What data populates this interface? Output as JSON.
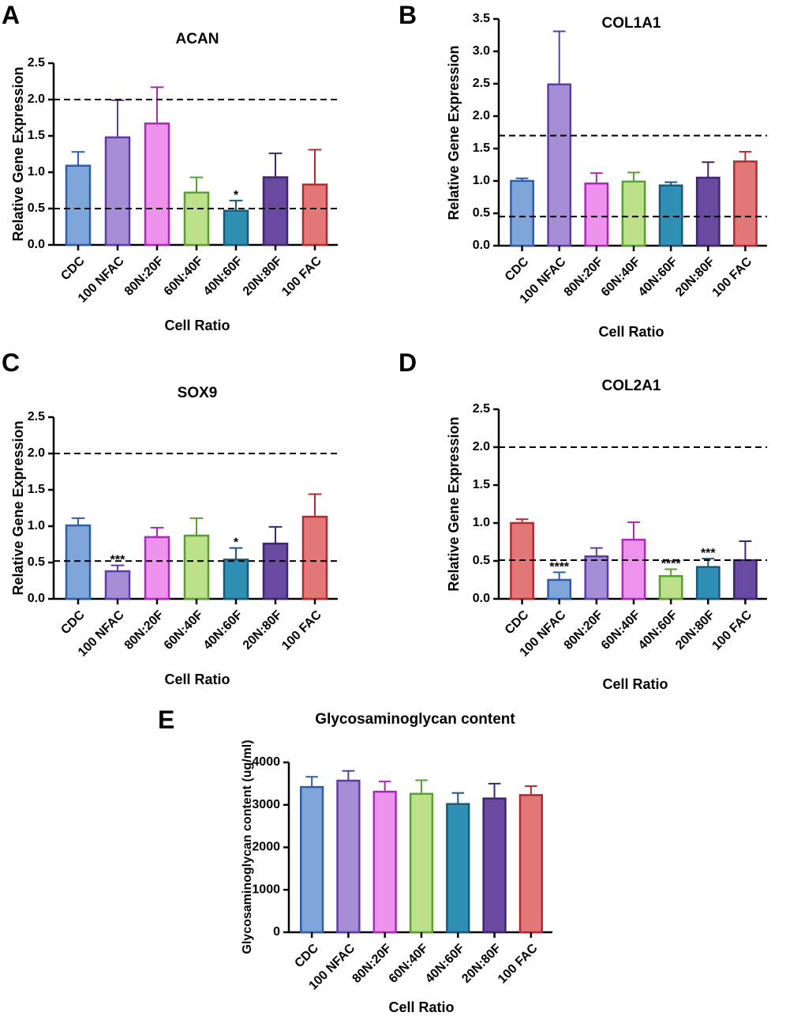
{
  "colors": {
    "blue": {
      "fill": "#7fa6da",
      "stroke": "#2f5da6"
    },
    "lavender": {
      "fill": "#a58ed6",
      "stroke": "#5e3ca6"
    },
    "pink": {
      "fill": "#ee92ee",
      "stroke": "#a82ab6"
    },
    "green": {
      "fill": "#bde08a",
      "stroke": "#58a030"
    },
    "teal": {
      "fill": "#2f8fb4",
      "stroke": "#1a5a78"
    },
    "purple": {
      "fill": "#6a4aa0",
      "stroke": "#3c2670"
    },
    "red": {
      "fill": "#e47878",
      "stroke": "#b22a32"
    }
  },
  "chart_data": [
    {
      "id": "A",
      "type": "bar",
      "panel_label": "A",
      "title": "ACAN",
      "xlabel": "Cell Ratio",
      "ylabel": "Relative Gene Expression",
      "ylim": [
        0,
        2.5
      ],
      "yticks": [
        "0.0",
        "0.5",
        "1.0",
        "1.5",
        "2.0",
        "2.5"
      ],
      "ytick_values": [
        0,
        0.5,
        1,
        1.5,
        2,
        2.5
      ],
      "categories": [
        "CDC",
        "100 NFAC",
        "80N:20F",
        "60N:40F",
        "40N:60F",
        "20N:80F",
        "100 FAC"
      ],
      "values": [
        1.09,
        1.48,
        1.67,
        0.72,
        0.47,
        0.93,
        0.83
      ],
      "errors": [
        0.19,
        0.51,
        0.5,
        0.21,
        0.14,
        0.33,
        0.48
      ],
      "significance": [
        "",
        "",
        "",
        "",
        "*",
        "",
        ""
      ],
      "reference_lines": [
        2.0,
        0.5
      ],
      "bar_colors": [
        "blue",
        "lavender",
        "pink",
        "green",
        "teal",
        "purple",
        "red"
      ]
    },
    {
      "id": "B",
      "type": "bar",
      "panel_label": "B",
      "title": "COL1A1",
      "xlabel": "Cell Ratio",
      "ylabel": "Relative Gene Expression",
      "ylim": [
        0,
        3.5
      ],
      "yticks": [
        "0.0",
        "0.5",
        "1.0",
        "1.5",
        "2.0",
        "2.5",
        "3.0",
        "3.5"
      ],
      "ytick_values": [
        0,
        0.5,
        1,
        1.5,
        2,
        2.5,
        3,
        3.5
      ],
      "categories": [
        "CDC",
        "100 NFAC",
        "80N:20F",
        "60N:40F",
        "40N:60F",
        "20N:80F",
        "100 FAC"
      ],
      "values": [
        1.0,
        2.49,
        0.96,
        0.99,
        0.93,
        1.05,
        1.3
      ],
      "errors": [
        0.04,
        0.82,
        0.16,
        0.14,
        0.05,
        0.24,
        0.15
      ],
      "significance": [
        "",
        "",
        "",
        "",
        "",
        "",
        ""
      ],
      "reference_lines": [
        1.7,
        0.45
      ],
      "bar_colors": [
        "blue",
        "lavender",
        "pink",
        "green",
        "teal",
        "purple",
        "red"
      ]
    },
    {
      "id": "C",
      "type": "bar",
      "panel_label": "C",
      "title": "SOX9",
      "xlabel": "Cell Ratio",
      "ylabel": "Relative Gene Expression",
      "ylim": [
        0,
        2.5
      ],
      "yticks": [
        "0.0",
        "0.5",
        "1.0",
        "1.5",
        "2.0",
        "2.5"
      ],
      "ytick_values": [
        0,
        0.5,
        1,
        1.5,
        2,
        2.5
      ],
      "categories": [
        "CDC",
        "100 NFAC",
        "80N:20F",
        "60N:40F",
        "40N:60F",
        "20N:80F",
        "100 FAC"
      ],
      "values": [
        1.01,
        0.38,
        0.85,
        0.87,
        0.54,
        0.76,
        1.13
      ],
      "errors": [
        0.1,
        0.08,
        0.13,
        0.24,
        0.16,
        0.23,
        0.31
      ],
      "significance": [
        "",
        "***",
        "",
        "",
        "*",
        "",
        ""
      ],
      "reference_lines": [
        2.0,
        0.52
      ],
      "bar_colors": [
        "blue",
        "lavender",
        "pink",
        "green",
        "teal",
        "purple",
        "red"
      ]
    },
    {
      "id": "D",
      "type": "bar",
      "panel_label": "D",
      "title": "COL2A1",
      "xlabel": "Cell Ratio",
      "ylabel": "Relative Gene Expression",
      "ylim": [
        0,
        2.5
      ],
      "yticks": [
        "0.0",
        "0.5",
        "1.0",
        "1.5",
        "2.0",
        "2.5"
      ],
      "ytick_values": [
        0,
        0.5,
        1,
        1.5,
        2,
        2.5
      ],
      "categories": [
        "CDC",
        "100 NFAC",
        "80N:20F",
        "60N:40F",
        "40N:60F",
        "20N:80F",
        "100 FAC"
      ],
      "values": [
        1.0,
        0.25,
        0.56,
        0.78,
        0.3,
        0.42,
        0.51
      ],
      "errors": [
        0.05,
        0.1,
        0.11,
        0.23,
        0.09,
        0.11,
        0.25
      ],
      "significance": [
        "",
        "****",
        "",
        "",
        "****",
        "***",
        ""
      ],
      "reference_lines": [
        2.0,
        0.51
      ],
      "bar_colors": [
        "red",
        "blue",
        "lavender",
        "pink",
        "green",
        "teal",
        "purple"
      ]
    },
    {
      "id": "E",
      "type": "bar",
      "panel_label": "E",
      "title": "Glycosaminoglycan content",
      "xlabel": "Cell Ratio",
      "ylabel": "Glycosaminoglycan content (ug/ml)",
      "ylim": [
        0,
        4000
      ],
      "yticks": [
        "0",
        "1000",
        "2000",
        "3000",
        "4000"
      ],
      "ytick_values": [
        0,
        1000,
        2000,
        3000,
        4000
      ],
      "categories": [
        "CDC",
        "100 NFAC",
        "80N:20F",
        "60N:40F",
        "40N:60F",
        "20N:80F",
        "100 FAC"
      ],
      "values": [
        3420,
        3570,
        3310,
        3260,
        3020,
        3150,
        3230
      ],
      "errors": [
        240,
        230,
        240,
        320,
        260,
        350,
        210
      ],
      "significance": [
        "",
        "",
        "",
        "",
        "",
        "",
        ""
      ],
      "reference_lines": [],
      "bar_colors": [
        "blue",
        "lavender",
        "pink",
        "green",
        "teal",
        "purple",
        "red"
      ]
    }
  ]
}
